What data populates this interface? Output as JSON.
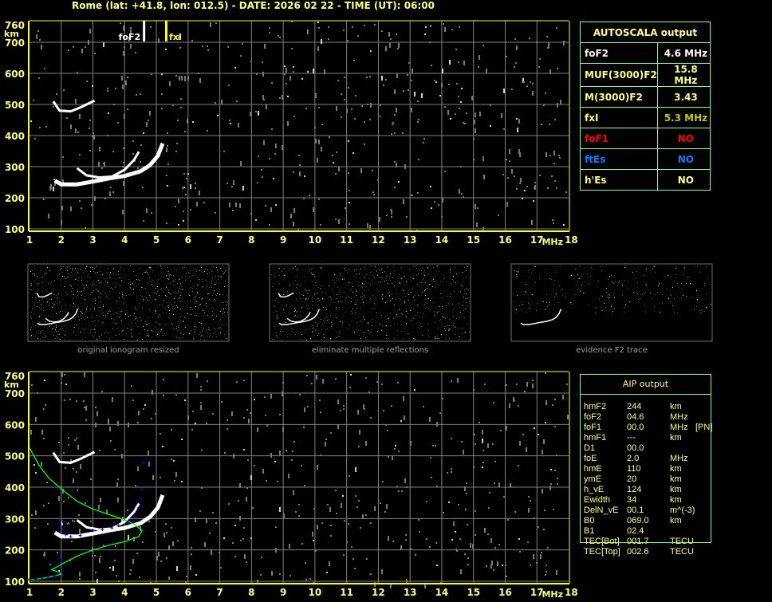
{
  "header": {
    "title": "Rome (lat: +41.8, lon: 012.5) - DATE: 2026 02 22 - TIME (UT): 06:00"
  },
  "colors": {
    "axis": "#ffff00",
    "grid": "#808080",
    "labels": "#ffff80",
    "panel_border": "#80ff80",
    "trace": "#ffffff",
    "profile": "#00ff00",
    "fit": "#0000ff",
    "foF1": "#ff0000",
    "ftEs": "#0080ff",
    "fxI_value": "#c8c800"
  },
  "chart_data": [
    {
      "type": "scatter",
      "name": "top-ionogram",
      "xlabel": "MHz",
      "ylabel": "km",
      "xlim": [
        1,
        18
      ],
      "ylim": [
        100,
        760
      ],
      "x_ticks": [
        "1",
        "2",
        "3",
        "4",
        "5",
        "6",
        "7",
        "8",
        "9",
        "10",
        "11",
        "12",
        "13",
        "14",
        "15",
        "16",
        "17",
        "18"
      ],
      "y_ticks": [
        "100",
        "200",
        "300",
        "400",
        "500",
        "600",
        "700",
        "760"
      ],
      "grid": true,
      "markers": [
        {
          "label": "foF2",
          "x": 4.6
        },
        {
          "label": "fxI",
          "x": 5.3
        }
      ],
      "traces": [
        {
          "kind": "o-trace",
          "points": [
            [
              1.8,
              255
            ],
            [
              2,
              243
            ],
            [
              2.5,
              243
            ],
            [
              3,
              252
            ],
            [
              3.5,
              262
            ],
            [
              4,
              270
            ],
            [
              4.5,
              285
            ],
            [
              4.8,
              305
            ],
            [
              5.05,
              335
            ],
            [
              5.2,
              375
            ]
          ]
        },
        {
          "kind": "x-trace",
          "points": [
            [
              2.5,
              295
            ],
            [
              2.8,
              272
            ],
            [
              3.2,
              265
            ],
            [
              3.6,
              268
            ],
            [
              4,
              290
            ],
            [
              4.3,
              322
            ],
            [
              4.45,
              348
            ]
          ]
        },
        {
          "kind": "second-hop",
          "points": [
            [
              1.75,
              510
            ],
            [
              1.95,
              480
            ],
            [
              2.3,
              478
            ],
            [
              2.6,
              490
            ],
            [
              2.9,
              505
            ],
            [
              3.05,
              512
            ]
          ]
        }
      ]
    },
    {
      "type": "scatter",
      "name": "bottom-ionogram",
      "xlabel": "MHz",
      "ylabel": "km",
      "xlim": [
        1,
        18
      ],
      "ylim": [
        100,
        760
      ],
      "x_ticks": [
        "1",
        "2",
        "3",
        "4",
        "5",
        "6",
        "7",
        "8",
        "9",
        "10",
        "11",
        "12",
        "13",
        "14",
        "15",
        "16",
        "17",
        "18"
      ],
      "y_ticks": [
        "100",
        "200",
        "300",
        "400",
        "500",
        "600",
        "700",
        "760"
      ],
      "grid": true,
      "profile": [
        [
          1,
          525
        ],
        [
          1.3,
          470
        ],
        [
          1.6,
          430
        ],
        [
          2,
          395
        ],
        [
          2.5,
          355
        ],
        [
          3,
          330
        ],
        [
          3.5,
          313
        ],
        [
          4,
          296
        ],
        [
          4.3,
          282
        ],
        [
          4.55,
          262
        ],
        [
          4.45,
          243
        ],
        [
          4,
          226
        ],
        [
          3.5,
          215
        ],
        [
          3,
          200
        ],
        [
          2.5,
          180
        ],
        [
          2.15,
          162
        ],
        [
          1.85,
          145
        ],
        [
          1.7,
          137
        ],
        [
          1.9,
          130
        ],
        [
          2,
          123
        ],
        [
          1.85,
          118
        ],
        [
          1.5,
          111
        ],
        [
          1.2,
          106
        ],
        [
          1,
          105
        ]
      ],
      "fit": [
        [
          1,
          105
        ],
        [
          1.2,
          106
        ],
        [
          1.4,
          108
        ],
        [
          1.6,
          111
        ],
        [
          1.8,
          116
        ],
        [
          1.9,
          127
        ],
        [
          1.95,
          145
        ],
        [
          2,
          165
        ],
        [
          2.05,
          265
        ],
        [
          2.05,
          290
        ],
        [
          2.15,
          248
        ],
        [
          2.3,
          242
        ],
        [
          2.6,
          246
        ],
        [
          3,
          262
        ],
        [
          3.3,
          265
        ],
        [
          3.6,
          270
        ],
        [
          3.8,
          278
        ],
        [
          4.1,
          288
        ],
        [
          4.3,
          306
        ],
        [
          4.45,
          335
        ],
        [
          4.5,
          362
        ],
        [
          4.55,
          393
        ],
        [
          4.6,
          478
        ]
      ]
    }
  ],
  "thumbnails": [
    {
      "caption": "original ionogram resized"
    },
    {
      "caption": "eliminate multiple reflections"
    },
    {
      "caption": "evidence F2 trace"
    }
  ],
  "autoscala": {
    "title": "AUTOSCALA output",
    "rows": [
      {
        "key": "foF2",
        "value": "4.6 MHz",
        "key_color": "#ffffff",
        "value_color": "#ffffff"
      },
      {
        "key": "MUF(3000)F2",
        "value": "15.8 MHz",
        "key_color": "#ffff80",
        "value_color": "#ffff80"
      },
      {
        "key": "M(3000)F2",
        "value": "3.43",
        "key_color": "#ffff80",
        "value_color": "#ffff80"
      },
      {
        "key": "fxI",
        "value": "5.3 MHz",
        "key_color": "#ffff80",
        "value_color": "#c8c800"
      },
      {
        "key": "foF1",
        "value": "NO",
        "key_color": "#ff0000",
        "value_color": "#ff0000"
      },
      {
        "key": "ftEs",
        "value": "NO",
        "key_color": "#0080ff",
        "value_color": "#0080ff"
      },
      {
        "key": "h'Es",
        "value": "NO",
        "key_color": "#ffff80",
        "value_color": "#ffff80"
      }
    ]
  },
  "aip": {
    "title": "AIP output",
    "rows": [
      {
        "k": "hmF2",
        "v": "244",
        "u": "km",
        "x": ""
      },
      {
        "k": "foF2",
        "v": "04.6",
        "u": "MHz",
        "x": ""
      },
      {
        "k": "foF1",
        "v": "00.0",
        "u": "MHz",
        "x": "[PN]"
      },
      {
        "k": "hmF1",
        "v": "---",
        "u": "km",
        "x": ""
      },
      {
        "k": "D1",
        "v": "00.0",
        "u": "",
        "x": ""
      },
      {
        "k": "foE",
        "v": "2.0",
        "u": "MHz",
        "x": ""
      },
      {
        "k": "hmE",
        "v": "110",
        "u": "km",
        "x": ""
      },
      {
        "k": "ymE",
        "v": "20",
        "u": "km",
        "x": ""
      },
      {
        "k": "h_vE",
        "v": "124",
        "u": "km",
        "x": ""
      },
      {
        "k": "Ewidth",
        "v": "34",
        "u": "km",
        "x": ""
      },
      {
        "k": "DelN_vE",
        "v": "00.1",
        "u": "m^(-3)",
        "x": ""
      },
      {
        "k": "B0",
        "v": "069.0",
        "u": "km",
        "x": ""
      },
      {
        "k": "B1",
        "v": "02.4",
        "u": "",
        "x": ""
      },
      {
        "k": "TEC[Bot]",
        "v": "001.7",
        "u": "TECU",
        "x": ""
      },
      {
        "k": "TEC[Top]",
        "v": "002.6",
        "u": "TECU",
        "x": ""
      }
    ]
  }
}
